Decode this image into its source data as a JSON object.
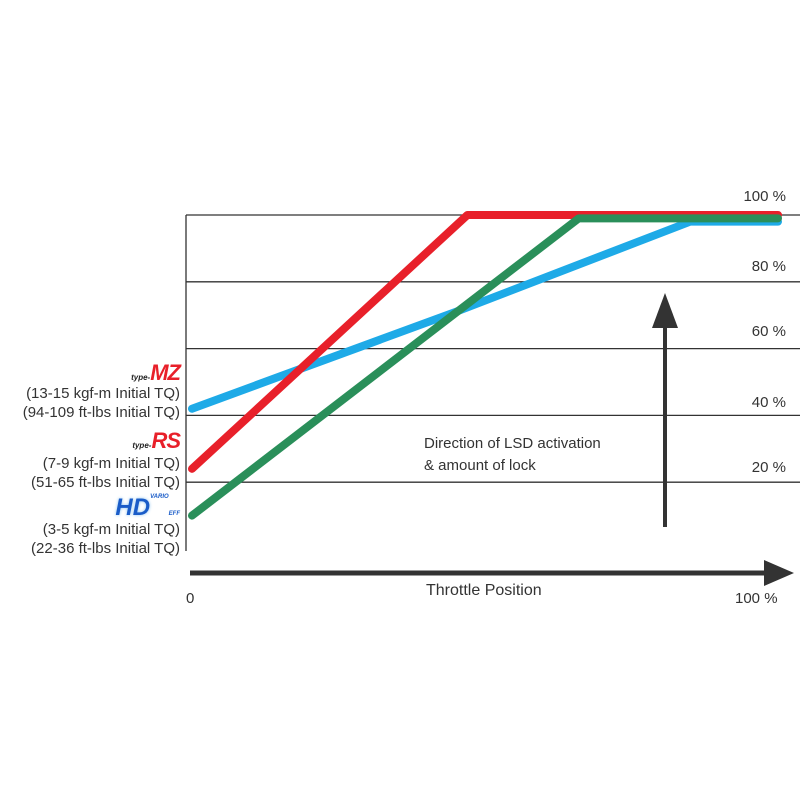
{
  "chart_data": {
    "type": "line",
    "xlabel": "Throttle Position",
    "x_tick_labels": [
      "0",
      "100 %"
    ],
    "xlim": [
      0,
      100
    ],
    "ylim": [
      0,
      100
    ],
    "y_tick_labels": [
      "20 %",
      "40 %",
      "60 %",
      "80 %",
      "100 %"
    ],
    "y_ticks": [
      20,
      40,
      60,
      80,
      100
    ],
    "grid": true,
    "annotation": [
      "Direction of LSD activation",
      "& amount of lock"
    ],
    "series": [
      {
        "name": "type-MZ",
        "color": "#1eaae7",
        "points": [
          [
            0,
            42
          ],
          [
            45,
            71
          ],
          [
            85,
            98
          ],
          [
            100,
            98
          ]
        ],
        "labels": [
          "(13-15 kgf-m Initial TQ)",
          "(94-109 ft-lbs Initial TQ)"
        ]
      },
      {
        "name": "type-RS",
        "color": "#e8202a",
        "points": [
          [
            0,
            24
          ],
          [
            47,
            100
          ],
          [
            100,
            100
          ]
        ],
        "labels": [
          "(7-9 kgf-m Initial TQ)",
          "(51-65 ft-lbs Initial TQ)"
        ]
      },
      {
        "name": "HD",
        "color": "#2a8f5a",
        "points": [
          [
            0,
            10
          ],
          [
            66,
            99
          ],
          [
            100,
            99
          ]
        ],
        "labels": [
          "(3-5 kgf-m Initial TQ)",
          "(22-36 ft-lbs Initial TQ)"
        ]
      }
    ]
  },
  "logos": {
    "mz_prefix": "type-",
    "mz_main": "MZ",
    "rs_prefix": "type-",
    "rs_main": "RS",
    "hd_main": "HD",
    "hd_sup": "VARIO",
    "hd_sub": "EFF"
  },
  "axis_color": "#333333"
}
